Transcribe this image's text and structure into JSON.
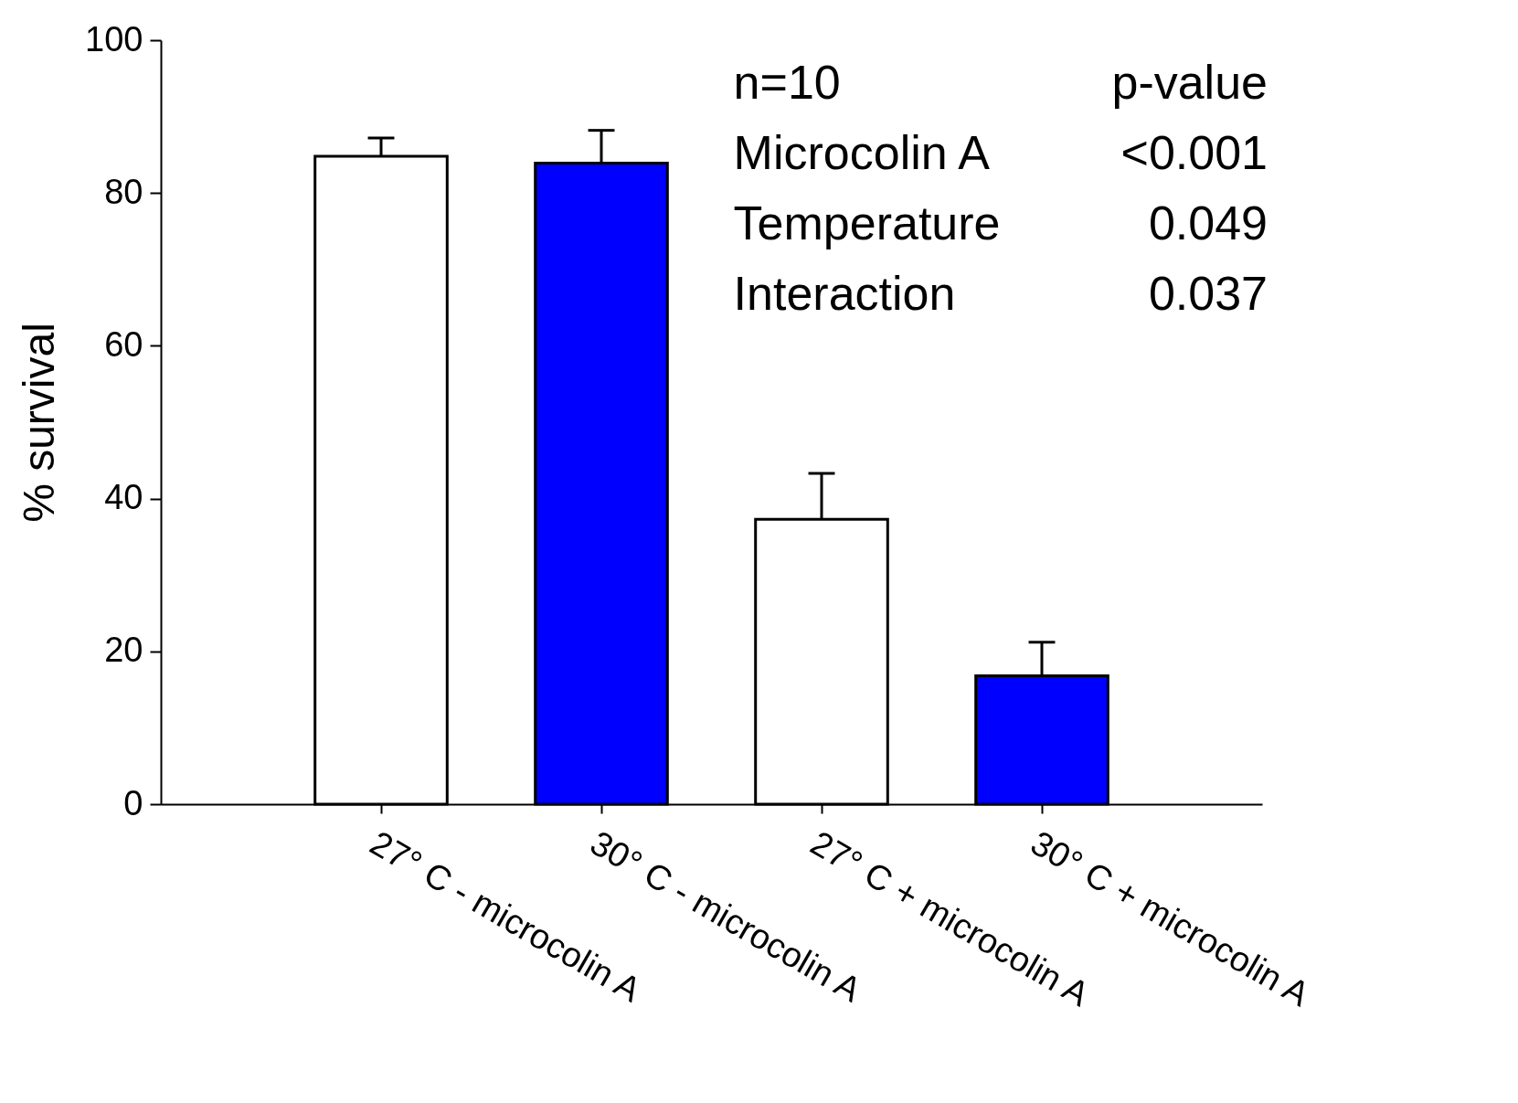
{
  "chart_data": {
    "type": "bar",
    "ylabel": "% survival",
    "categories": [
      "27° C - microcolin A",
      "30° C - microcolin A",
      "27° C + microcolin A",
      "30° C + microcolin A"
    ],
    "values": [
      84.8,
      83.9,
      37.3,
      16.8
    ],
    "errors": [
      [
        84.8,
        87.2
      ],
      [
        83.9,
        88.2
      ],
      [
        37.3,
        43.3
      ],
      [
        16.8,
        21.2
      ]
    ],
    "colors": [
      "#ffffff",
      "#0000ff",
      "#ffffff",
      "#0000ff"
    ],
    "ylim": [
      0,
      100
    ],
    "yticks": [
      0,
      20,
      40,
      60,
      80,
      100
    ],
    "grid": false,
    "annotations": [
      "n=10",
      "p-value",
      "Microcolin A",
      "<0.001",
      "Temperature",
      "0.049",
      "Interaction",
      "0.037"
    ]
  }
}
